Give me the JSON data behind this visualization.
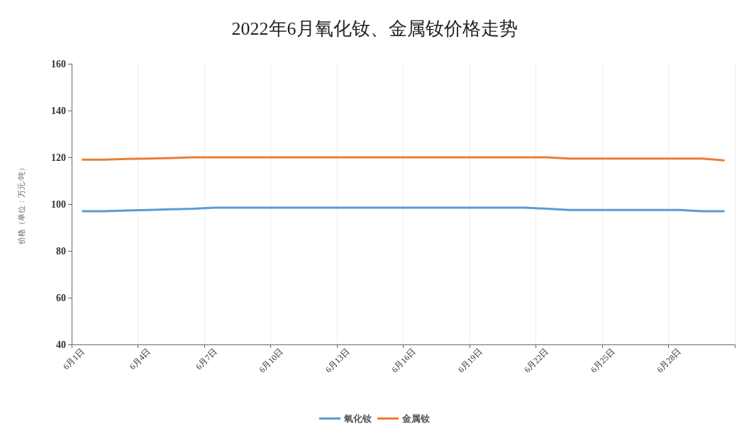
{
  "chart_data": {
    "type": "line",
    "title": "2022年6月氧化钕、金属钕价格走势",
    "ylabel": "价格（单位：万元/吨）",
    "categories": [
      "6月1日",
      null,
      null,
      "6月4日",
      null,
      null,
      "6月7日",
      null,
      null,
      "6月10日",
      null,
      null,
      "6月13日",
      null,
      null,
      "6月16日",
      null,
      null,
      "6月19日",
      null,
      null,
      "6月22日",
      null,
      null,
      "6月25日",
      null,
      null,
      "6月28日",
      null,
      null
    ],
    "series": [
      {
        "name": "氧化钕",
        "color": "#5b9bd5",
        "values": [
          97,
          97,
          97.3,
          97.5,
          97.8,
          98,
          98.5,
          98.5,
          98.5,
          98.5,
          98.5,
          98.5,
          98.5,
          98.5,
          98.5,
          98.5,
          98.5,
          98.5,
          98.5,
          98.5,
          98.5,
          98,
          97.5,
          97.5,
          97.5,
          97.5,
          97.5,
          97.5,
          97,
          97
        ]
      },
      {
        "name": "金属钕",
        "color": "#ed7d31",
        "values": [
          119,
          119,
          119.3,
          119.5,
          119.7,
          120,
          120,
          120,
          120,
          120,
          120,
          120,
          120,
          120,
          120,
          120,
          120,
          120,
          120,
          120,
          120,
          120,
          119.5,
          119.5,
          119.5,
          119.5,
          119.5,
          119.5,
          119.5,
          118.7
        ]
      }
    ],
    "ylim": [
      40,
      160
    ],
    "yticks": [
      40,
      60,
      80,
      100,
      120,
      140,
      160
    ],
    "grid": "x",
    "legend": "bottom",
    "marker": "none",
    "line_style": "solid"
  }
}
